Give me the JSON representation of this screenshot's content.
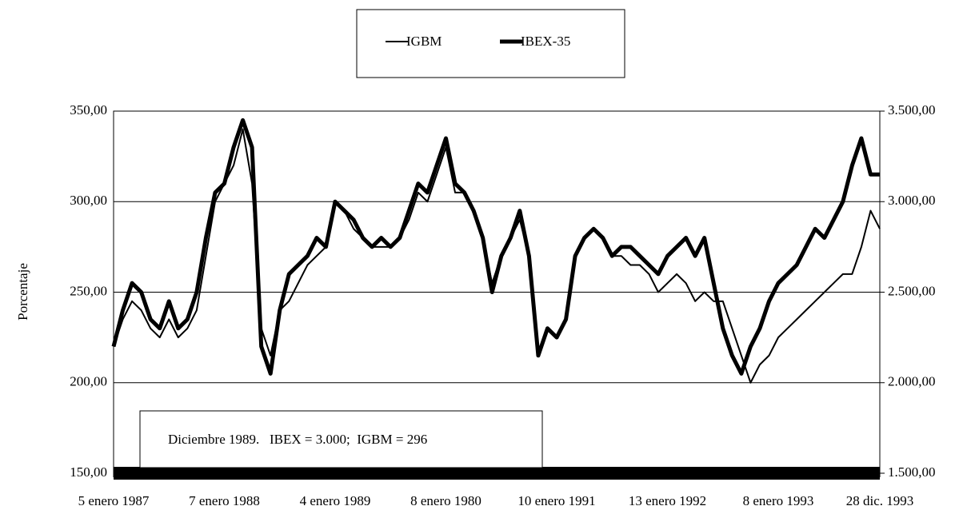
{
  "chart_data": {
    "type": "line",
    "y_label": "Porcentaje",
    "annotation": "Diciembre 1989.   IBEX = 3.000;  IGBM = 296",
    "x": [
      0,
      1,
      2,
      3,
      4,
      5,
      6,
      7,
      8,
      9,
      10,
      11,
      12,
      13,
      14,
      15,
      16,
      17,
      18,
      19,
      20,
      21,
      22,
      23,
      24,
      25,
      26,
      27,
      28,
      29,
      30,
      31,
      32,
      33,
      34,
      35,
      36,
      37,
      38,
      39,
      40,
      41,
      42,
      43,
      44,
      45,
      46,
      47,
      48,
      49,
      50,
      51,
      52,
      53,
      54,
      55,
      56,
      57,
      58,
      59,
      60,
      61,
      62,
      63,
      64,
      65,
      66,
      67,
      68,
      69,
      70,
      71,
      72,
      73,
      74,
      75,
      76,
      77,
      78,
      79,
      80,
      81,
      82,
      83
    ],
    "xlim": [
      0,
      83
    ],
    "xticks": [
      {
        "value": 0,
        "label": "5 enero 1987"
      },
      {
        "value": 12,
        "label": "7 enero 1988"
      },
      {
        "value": 24,
        "label": "4 enero 1989"
      },
      {
        "value": 36,
        "label": "8 enero 1980"
      },
      {
        "value": 48,
        "label": "10 enero 1991"
      },
      {
        "value": 60,
        "label": "13 enero 1992"
      },
      {
        "value": 72,
        "label": "8 enero 1993"
      },
      {
        "value": 83,
        "label": "28 dic. 1993"
      }
    ],
    "ylim": [
      150,
      350
    ],
    "yticks": [
      {
        "value": 150,
        "label": "150,00"
      },
      {
        "value": 200,
        "label": "200,00"
      },
      {
        "value": 250,
        "label": "250,00"
      },
      {
        "value": 300,
        "label": "300,00"
      },
      {
        "value": 350,
        "label": "350,00"
      }
    ],
    "y2lim": [
      1500,
      3500
    ],
    "y2ticks": [
      {
        "value": 1500,
        "label": "1.500,00"
      },
      {
        "value": 2000,
        "label": "2.000,00"
      },
      {
        "value": 2500,
        "label": "2.500,00"
      },
      {
        "value": 3000,
        "label": "3.000,00"
      },
      {
        "value": 3500,
        "label": "3.500,00"
      }
    ],
    "grid": true,
    "series": [
      {
        "name": "IGBM",
        "color": "#000000",
        "values": [
          220,
          235,
          245,
          240,
          230,
          225,
          235,
          225,
          230,
          240,
          270,
          300,
          310,
          320,
          340,
          310,
          230,
          215,
          240,
          245,
          255,
          265,
          270,
          275,
          300,
          295,
          285,
          280,
          275,
          275,
          275,
          280,
          290,
          305,
          300,
          315,
          330,
          305,
          305,
          295,
          280,
          255,
          270,
          280,
          290,
          270,
          215,
          230,
          225,
          235,
          270,
          280,
          285,
          280,
          270,
          270,
          265,
          265,
          260,
          250,
          255,
          260,
          255,
          245,
          250,
          245,
          245,
          230,
          215,
          200,
          210,
          215,
          225,
          230,
          235,
          240,
          245,
          250,
          255,
          260,
          260,
          275,
          295,
          285
        ]
      },
      {
        "name": "IBEX-35",
        "color": "#000000",
        "axis": "y2",
        "values": [
          2200,
          2400,
          2550,
          2500,
          2350,
          2300,
          2450,
          2300,
          2350,
          2500,
          2800,
          3050,
          3100,
          3300,
          3450,
          3300,
          2200,
          2050,
          2400,
          2600,
          2650,
          2700,
          2800,
          2750,
          3000,
          2950,
          2900,
          2800,
          2750,
          2800,
          2750,
          2800,
          2950,
          3100,
          3050,
          3200,
          3350,
          3100,
          3050,
          2950,
          2800,
          2500,
          2700,
          2800,
          2950,
          2700,
          2150,
          2300,
          2250,
          2350,
          2700,
          2800,
          2850,
          2800,
          2700,
          2750,
          2750,
          2700,
          2650,
          2600,
          2700,
          2750,
          2800,
          2700,
          2800,
          2550,
          2300,
          2150,
          2050,
          2200,
          2300,
          2450,
          2550,
          2600,
          2650,
          2750,
          2850,
          2800,
          2900,
          3000,
          3200,
          3350,
          3150,
          3150
        ]
      }
    ]
  }
}
